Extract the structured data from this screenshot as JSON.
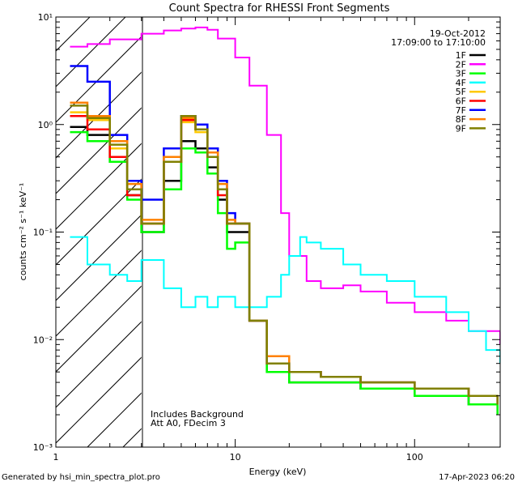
{
  "chart_data": {
    "type": "line",
    "title": "Count Spectra for RHESSI Front Segments",
    "xlabel": "Energy (keV)",
    "ylabel": "counts cm⁻² s⁻¹ keV⁻¹",
    "xscale": "log",
    "yscale": "log",
    "xlim": [
      1,
      300
    ],
    "ylim": [
      0.001,
      10
    ],
    "x_tick_labels": [
      "1",
      "10",
      "100"
    ],
    "y_tick_labels": [
      "10⁻³",
      "10⁻²",
      "10⁻¹",
      "10⁰",
      "10¹"
    ],
    "date": "19-Oct-2012",
    "time_range": "17:09:00 to 17:10:00",
    "shaded_region_below_kev": 3,
    "annotations": [
      "Includes Background",
      "Att A0, FDecim 3"
    ],
    "legend_placement": "top-right",
    "series": [
      {
        "name": "1F",
        "color": "#000000",
        "x": [
          1.2,
          1.5,
          2,
          2.5,
          3,
          4,
          5,
          6,
          7,
          8,
          9,
          10,
          12,
          15,
          20,
          30,
          50,
          100,
          200,
          290
        ],
        "y": [
          0.95,
          0.8,
          0.45,
          0.22,
          0.1,
          0.3,
          0.7,
          0.6,
          0.4,
          0.2,
          0.1,
          0.1,
          0.015,
          0.005,
          0.004,
          0.004,
          0.0035,
          0.003,
          0.0025,
          0.002
        ]
      },
      {
        "name": "2F",
        "color": "#ff00ff",
        "x": [
          1.2,
          1.5,
          2,
          3,
          4,
          5,
          6,
          7,
          8,
          10,
          12,
          15,
          18,
          20,
          25,
          30,
          40,
          50,
          70,
          100,
          150,
          200,
          300
        ],
        "y": [
          5.3,
          5.6,
          6.2,
          7.0,
          7.5,
          7.8,
          8.0,
          7.6,
          6.3,
          4.2,
          2.3,
          0.8,
          0.15,
          0.06,
          0.035,
          0.03,
          0.032,
          0.028,
          0.022,
          0.018,
          0.015,
          0.012,
          0.009
        ]
      },
      {
        "name": "3F",
        "color": "#00ff00",
        "x": [
          1.2,
          1.5,
          2,
          2.5,
          3,
          4,
          5,
          6,
          7,
          8,
          9,
          10,
          12,
          15,
          20,
          30,
          50,
          100,
          200,
          290
        ],
        "y": [
          0.85,
          0.7,
          0.45,
          0.2,
          0.1,
          0.25,
          0.6,
          0.55,
          0.35,
          0.15,
          0.07,
          0.08,
          0.015,
          0.005,
          0.004,
          0.004,
          0.0035,
          0.003,
          0.0025,
          0.002
        ]
      },
      {
        "name": "4F",
        "color": "#00ffff",
        "x": [
          1.2,
          1.5,
          2,
          2.5,
          3,
          4,
          5,
          6,
          7,
          8,
          10,
          12,
          15,
          18,
          20,
          23,
          25,
          30,
          40,
          50,
          70,
          100,
          150,
          200,
          250,
          300
        ],
        "y": [
          0.09,
          0.05,
          0.04,
          0.035,
          0.055,
          0.03,
          0.02,
          0.025,
          0.02,
          0.025,
          0.02,
          0.02,
          0.025,
          0.04,
          0.06,
          0.09,
          0.08,
          0.07,
          0.05,
          0.04,
          0.035,
          0.025,
          0.018,
          0.012,
          0.008,
          0.006
        ]
      },
      {
        "name": "5F",
        "color": "#ffc800",
        "x": [
          1.2,
          1.5,
          2,
          2.5,
          3,
          4,
          5,
          6,
          7,
          8,
          9,
          10,
          12,
          15,
          20,
          30,
          50,
          100,
          200,
          290
        ],
        "y": [
          1.3,
          1.1,
          0.6,
          0.25,
          0.12,
          0.45,
          1.05,
          0.85,
          0.5,
          0.25,
          0.12,
          0.12,
          0.015,
          0.006,
          0.005,
          0.0045,
          0.004,
          0.0035,
          0.003,
          0.0025
        ]
      },
      {
        "name": "6F",
        "color": "#ff0000",
        "x": [
          1.2,
          1.5,
          2,
          2.5,
          3,
          4,
          5,
          6,
          7,
          8,
          9,
          10,
          12,
          15,
          20,
          30,
          50,
          100,
          200,
          290
        ],
        "y": [
          1.2,
          0.9,
          0.5,
          0.22,
          0.12,
          0.45,
          1.1,
          0.9,
          0.5,
          0.22,
          0.12,
          0.12,
          0.015,
          0.006,
          0.005,
          0.0045,
          0.004,
          0.0035,
          0.003,
          0.0025
        ]
      },
      {
        "name": "7F",
        "color": "#0000ff",
        "x": [
          1.2,
          1.5,
          2,
          2.5,
          3,
          4,
          5,
          6,
          7,
          8,
          9,
          10,
          12,
          15,
          20,
          30,
          50,
          100,
          200,
          290
        ],
        "y": [
          3.5,
          2.5,
          0.8,
          0.3,
          0.2,
          0.6,
          1.2,
          1.0,
          0.6,
          0.3,
          0.15,
          0.12,
          0.015,
          0.006,
          0.005,
          0.0045,
          0.004,
          0.0035,
          0.003,
          0.0025
        ]
      },
      {
        "name": "8F",
        "color": "#ff8000",
        "x": [
          1.2,
          1.5,
          2,
          2.5,
          3,
          4,
          5,
          6,
          7,
          8,
          9,
          10,
          12,
          15,
          20,
          30,
          50,
          100,
          200,
          290
        ],
        "y": [
          1.6,
          1.2,
          0.7,
          0.28,
          0.13,
          0.5,
          1.15,
          0.9,
          0.55,
          0.28,
          0.13,
          0.12,
          0.015,
          0.007,
          0.005,
          0.0045,
          0.004,
          0.0035,
          0.003,
          0.0025
        ]
      },
      {
        "name": "9F",
        "color": "#808000",
        "x": [
          1.2,
          1.5,
          2,
          2.5,
          3,
          4,
          5,
          6,
          7,
          8,
          9,
          10,
          12,
          15,
          20,
          30,
          50,
          100,
          200,
          290
        ],
        "y": [
          1.5,
          1.15,
          0.65,
          0.25,
          0.12,
          0.45,
          1.2,
          0.9,
          0.5,
          0.25,
          0.12,
          0.12,
          0.015,
          0.006,
          0.005,
          0.0045,
          0.004,
          0.0035,
          0.003,
          0.0025
        ]
      }
    ]
  },
  "footer": {
    "left": "Generated by hsi_min_spectra_plot.pro",
    "right": "17-Apr-2023 06:20"
  }
}
